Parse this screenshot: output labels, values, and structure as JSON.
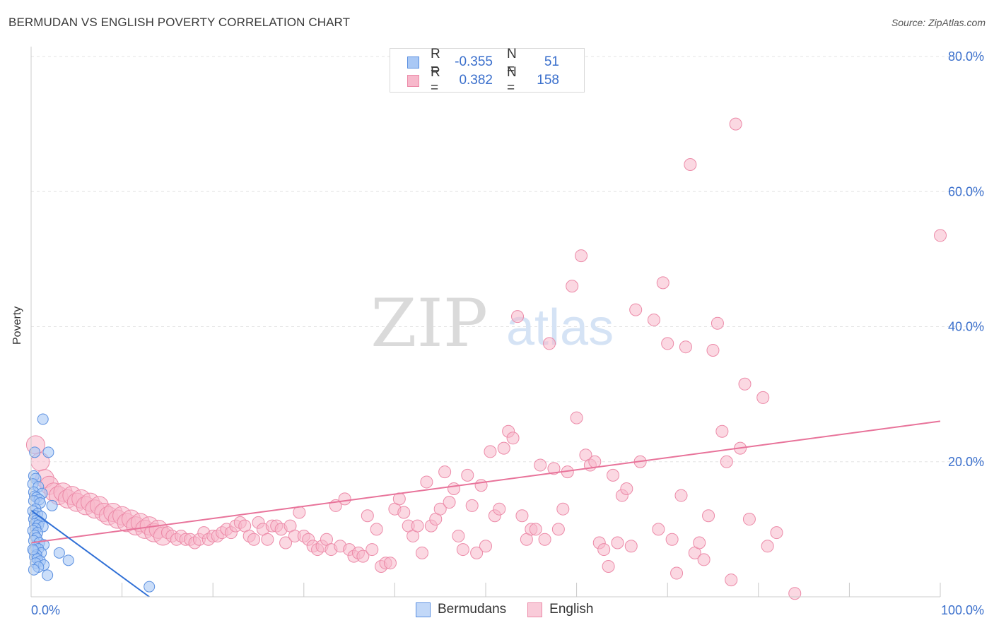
{
  "title": "BERMUDAN VS ENGLISH POVERTY CORRELATION CHART",
  "source": "Source: ZipAtlas.com",
  "watermark": {
    "zip": "ZIP",
    "atlas": "atlas"
  },
  "legend_top": {
    "rows": [
      {
        "r_label": "R =",
        "r_value": "-0.355",
        "n_label": "N =",
        "n_value": "51"
      },
      {
        "r_label": "R =",
        "r_value": "0.382",
        "n_label": "N =",
        "n_value": "158"
      }
    ]
  },
  "colors": {
    "blue_fill": "#a9c8f5",
    "blue_stroke": "#5a8fe0",
    "blue_line": "#2f6fd6",
    "pink_fill": "#f7b8cb",
    "pink_stroke": "#ec8aa8",
    "pink_line": "#e8739a",
    "axis_text": "#3a6fcc",
    "grid": "#e3e3e3"
  },
  "chart_data": {
    "type": "scatter",
    "title": "BERMUDAN VS ENGLISH POVERTY CORRELATION CHART",
    "xlabel": "",
    "ylabel": "Poverty",
    "xlim": [
      0,
      100
    ],
    "ylim": [
      0,
      80
    ],
    "x_tick_labels": [
      "0.0%",
      "100.0%"
    ],
    "y_ticks": [
      20,
      40,
      60,
      80
    ],
    "y_tick_labels": [
      "20.0%",
      "40.0%",
      "60.0%",
      "80.0%"
    ],
    "grid": true,
    "series": [
      {
        "name": "Bermudans",
        "r": -0.355,
        "n": 51,
        "trend": {
          "x": [
            0,
            13
          ],
          "y": [
            12.8,
            0
          ]
        },
        "points": [
          [
            1.3,
            26.3
          ],
          [
            0.4,
            21.4
          ],
          [
            1.9,
            21.4
          ],
          [
            0.3,
            17.9
          ],
          [
            0.5,
            17.5
          ],
          [
            0.2,
            16.7
          ],
          [
            0.8,
            16.3
          ],
          [
            0.3,
            15.5
          ],
          [
            1.2,
            15.3
          ],
          [
            0.4,
            14.9
          ],
          [
            0.6,
            14.7
          ],
          [
            0.9,
            14.4
          ],
          [
            0.3,
            14.2
          ],
          [
            1.0,
            13.9
          ],
          [
            2.3,
            13.5
          ],
          [
            0.5,
            13.0
          ],
          [
            0.2,
            12.7
          ],
          [
            0.7,
            12.3
          ],
          [
            0.4,
            12.0
          ],
          [
            1.1,
            11.9
          ],
          [
            0.3,
            11.5
          ],
          [
            0.6,
            11.3
          ],
          [
            0.9,
            11.1
          ],
          [
            0.4,
            10.8
          ],
          [
            0.8,
            10.6
          ],
          [
            1.3,
            10.4
          ],
          [
            0.5,
            10.1
          ],
          [
            0.2,
            9.8
          ],
          [
            0.7,
            9.5
          ],
          [
            0.4,
            9.1
          ],
          [
            0.6,
            8.7
          ],
          [
            0.3,
            8.3
          ],
          [
            0.9,
            8.0
          ],
          [
            1.4,
            7.7
          ],
          [
            0.5,
            7.4
          ],
          [
            0.8,
            7.1
          ],
          [
            0.3,
            6.8
          ],
          [
            1.1,
            6.5
          ],
          [
            0.6,
            6.2
          ],
          [
            3.1,
            6.5
          ],
          [
            0.4,
            5.9
          ],
          [
            4.1,
            5.4
          ],
          [
            0.7,
            5.6
          ],
          [
            1.0,
            5.3
          ],
          [
            0.5,
            5.0
          ],
          [
            1.4,
            4.7
          ],
          [
            0.8,
            4.4
          ],
          [
            1.8,
            3.2
          ],
          [
            13.0,
            1.5
          ],
          [
            0.3,
            4.0
          ],
          [
            0.2,
            7.0
          ]
        ]
      },
      {
        "name": "English",
        "r": 0.382,
        "n": 158,
        "trend": {
          "x": [
            0,
            100
          ],
          "y": [
            8.0,
            26.0
          ]
        },
        "points": [
          [
            0.5,
            22.5
          ],
          [
            1.0,
            20.0
          ],
          [
            1.5,
            17.5
          ],
          [
            2.0,
            16.5
          ],
          [
            2.5,
            15.5
          ],
          [
            3.0,
            15.0
          ],
          [
            3.5,
            15.5
          ],
          [
            4.0,
            14.5
          ],
          [
            4.5,
            15.0
          ],
          [
            5.0,
            14.0
          ],
          [
            5.5,
            14.5
          ],
          [
            6.0,
            13.5
          ],
          [
            6.5,
            14.0
          ],
          [
            7.0,
            13.0
          ],
          [
            7.5,
            13.5
          ],
          [
            8.0,
            12.5
          ],
          [
            8.5,
            12.0
          ],
          [
            9.0,
            12.5
          ],
          [
            9.5,
            11.5
          ],
          [
            10.0,
            12.0
          ],
          [
            10.5,
            11.0
          ],
          [
            11.0,
            11.5
          ],
          [
            11.5,
            10.5
          ],
          [
            12.0,
            11.0
          ],
          [
            12.5,
            10.0
          ],
          [
            13.0,
            10.5
          ],
          [
            13.5,
            9.5
          ],
          [
            14.0,
            10.0
          ],
          [
            14.5,
            9.0
          ],
          [
            15.0,
            9.5
          ],
          [
            15.5,
            9.0
          ],
          [
            16.0,
            8.5
          ],
          [
            16.5,
            9.0
          ],
          [
            17.0,
            8.5
          ],
          [
            17.5,
            8.5
          ],
          [
            18.0,
            8.0
          ],
          [
            18.5,
            8.5
          ],
          [
            19.0,
            9.5
          ],
          [
            19.5,
            8.5
          ],
          [
            20.0,
            9.0
          ],
          [
            20.5,
            9.0
          ],
          [
            21.0,
            9.5
          ],
          [
            21.5,
            10.0
          ],
          [
            22.0,
            9.5
          ],
          [
            22.5,
            10.5
          ],
          [
            23.0,
            11.0
          ],
          [
            23.5,
            10.5
          ],
          [
            24.0,
            9.0
          ],
          [
            24.5,
            8.5
          ],
          [
            25.0,
            11.0
          ],
          [
            25.5,
            10.0
          ],
          [
            26.0,
            8.5
          ],
          [
            26.5,
            10.5
          ],
          [
            27.0,
            10.5
          ],
          [
            27.5,
            10.0
          ],
          [
            28.0,
            8.0
          ],
          [
            28.5,
            10.5
          ],
          [
            29.0,
            9.0
          ],
          [
            29.5,
            12.5
          ],
          [
            30.0,
            9.0
          ],
          [
            30.5,
            8.5
          ],
          [
            31.0,
            7.5
          ],
          [
            31.5,
            7.0
          ],
          [
            32.0,
            7.5
          ],
          [
            32.5,
            8.5
          ],
          [
            33.0,
            7.0
          ],
          [
            33.5,
            13.5
          ],
          [
            34.0,
            7.5
          ],
          [
            34.5,
            14.5
          ],
          [
            35.0,
            7.0
          ],
          [
            35.5,
            6.0
          ],
          [
            36.0,
            6.5
          ],
          [
            36.5,
            6.0
          ],
          [
            37.0,
            12.0
          ],
          [
            37.5,
            7.0
          ],
          [
            38.0,
            10.0
          ],
          [
            38.5,
            4.5
          ],
          [
            39.0,
            5.0
          ],
          [
            39.5,
            5.0
          ],
          [
            40.0,
            13.0
          ],
          [
            40.5,
            14.5
          ],
          [
            41.0,
            12.5
          ],
          [
            41.5,
            10.5
          ],
          [
            42.0,
            9.0
          ],
          [
            42.5,
            10.5
          ],
          [
            43.0,
            6.5
          ],
          [
            43.5,
            17.0
          ],
          [
            44.0,
            10.5
          ],
          [
            44.5,
            11.5
          ],
          [
            45.0,
            13.0
          ],
          [
            45.5,
            18.5
          ],
          [
            46.0,
            14.0
          ],
          [
            46.5,
            16.0
          ],
          [
            47.0,
            9.0
          ],
          [
            47.5,
            7.0
          ],
          [
            48.0,
            18.0
          ],
          [
            48.5,
            13.5
          ],
          [
            49.0,
            6.5
          ],
          [
            49.5,
            16.5
          ],
          [
            50.0,
            7.5
          ],
          [
            50.5,
            21.5
          ],
          [
            51.0,
            12.0
          ],
          [
            51.5,
            13.0
          ],
          [
            52.0,
            22.0
          ],
          [
            52.5,
            24.5
          ],
          [
            53.0,
            23.5
          ],
          [
            53.5,
            41.5
          ],
          [
            54.0,
            12.0
          ],
          [
            54.5,
            8.5
          ],
          [
            55.0,
            10.0
          ],
          [
            55.5,
            10.0
          ],
          [
            56.0,
            19.5
          ],
          [
            56.5,
            8.5
          ],
          [
            57.0,
            37.5
          ],
          [
            57.5,
            19.0
          ],
          [
            58.0,
            10.0
          ],
          [
            58.5,
            13.0
          ],
          [
            59.0,
            18.5
          ],
          [
            59.5,
            46.0
          ],
          [
            60.0,
            26.5
          ],
          [
            60.5,
            50.5
          ],
          [
            61.0,
            21.0
          ],
          [
            61.5,
            19.5
          ],
          [
            62.0,
            20.0
          ],
          [
            62.5,
            8.0
          ],
          [
            63.0,
            7.0
          ],
          [
            63.5,
            4.5
          ],
          [
            64.0,
            18.0
          ],
          [
            64.5,
            8.0
          ],
          [
            65.0,
            15.0
          ],
          [
            65.5,
            16.0
          ],
          [
            66.0,
            7.5
          ],
          [
            66.5,
            42.5
          ],
          [
            67.0,
            20.0
          ],
          [
            68.5,
            41.0
          ],
          [
            69.0,
            10.0
          ],
          [
            69.5,
            46.5
          ],
          [
            70.0,
            37.5
          ],
          [
            70.5,
            8.5
          ],
          [
            71.0,
            3.5
          ],
          [
            71.5,
            15.0
          ],
          [
            72.0,
            37.0
          ],
          [
            72.5,
            64.0
          ],
          [
            73.0,
            6.5
          ],
          [
            73.5,
            8.0
          ],
          [
            74.0,
            5.5
          ],
          [
            74.5,
            12.0
          ],
          [
            75.0,
            36.5
          ],
          [
            75.5,
            40.5
          ],
          [
            76.0,
            24.5
          ],
          [
            76.5,
            20.0
          ],
          [
            77.0,
            2.5
          ],
          [
            77.5,
            70.0
          ],
          [
            78.0,
            22.0
          ],
          [
            78.5,
            31.5
          ],
          [
            79.0,
            11.5
          ],
          [
            80.5,
            29.5
          ],
          [
            81.0,
            7.5
          ],
          [
            82.0,
            9.5
          ],
          [
            84.0,
            0.5
          ],
          [
            100.0,
            53.5
          ]
        ]
      }
    ]
  },
  "bottom_legend": [
    {
      "label": "Bermudans"
    },
    {
      "label": "English"
    }
  ]
}
